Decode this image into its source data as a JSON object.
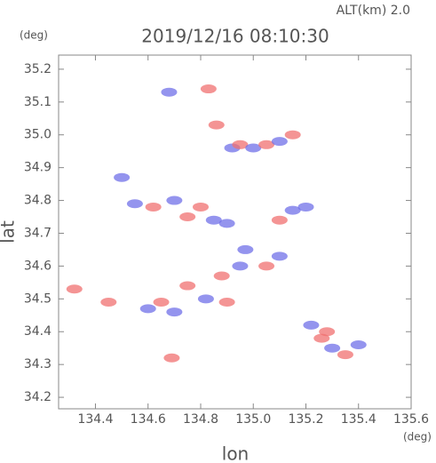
{
  "chart_data": {
    "type": "scatter",
    "title": "2019/12/16 08:10:30",
    "subtitle": "ALT(km) 2.0",
    "x_label": "lon",
    "y_label": "lat",
    "x_unit": "(deg)",
    "y_unit": "(deg)",
    "xlim": [
      134.26,
      135.6
    ],
    "ylim": [
      34.165,
      35.243
    ],
    "xticks": [
      134.4,
      134.6,
      134.8,
      {
        "value": 135.0,
        "label": "135.0"
      },
      135.2,
      135.4,
      135.6
    ],
    "yticks": [
      34.2,
      34.3,
      34.4,
      34.5,
      34.6,
      34.7,
      34.8,
      34.9,
      {
        "value": 35.0,
        "label": "35.0"
      },
      35.1,
      35.2
    ],
    "x": [
      134.68,
      134.83,
      134.86,
      134.92,
      134.95,
      135.0,
      135.05,
      135.1,
      135.15,
      134.5,
      134.55,
      134.62,
      134.7,
      134.75,
      134.8,
      134.85,
      134.9,
      135.1,
      135.15,
      135.2,
      134.97,
      135.05,
      135.1,
      134.88,
      134.95,
      134.75,
      134.82,
      134.9,
      134.65,
      134.6,
      134.7,
      134.32,
      134.45,
      134.69,
      135.22,
      135.26,
      135.3,
      135.35,
      135.4,
      135.28
    ],
    "y": [
      35.13,
      35.14,
      35.03,
      34.96,
      34.97,
      34.96,
      34.97,
      34.98,
      35.0,
      34.87,
      34.79,
      34.78,
      34.8,
      34.75,
      34.78,
      34.74,
      34.73,
      34.74,
      34.77,
      34.78,
      34.65,
      34.6,
      34.63,
      34.57,
      34.6,
      34.54,
      34.5,
      34.49,
      34.49,
      34.47,
      34.46,
      34.53,
      34.49,
      34.32,
      34.42,
      34.38,
      34.35,
      34.33,
      34.36,
      34.4
    ],
    "colors": [
      "#7070e8",
      "#f07070",
      "#f07070",
      "#7070e8",
      "#f07070",
      "#7070e8",
      "#f07070",
      "#7070e8",
      "#f07070",
      "#7070e8",
      "#7070e8",
      "#f07070",
      "#7070e8",
      "#f07070",
      "#f07070",
      "#7070e8",
      "#7070e8",
      "#f07070",
      "#7070e8",
      "#7070e8",
      "#7070e8",
      "#f07070",
      "#7070e8",
      "#f07070",
      "#7070e8",
      "#f07070",
      "#7070e8",
      "#f07070",
      "#f07070",
      "#7070e8",
      "#7070e8",
      "#f07070",
      "#f07070",
      "#f07070",
      "#7070e8",
      "#f07070",
      "#7070e8",
      "#f07070",
      "#7070e8",
      "#f07070"
    ]
  }
}
